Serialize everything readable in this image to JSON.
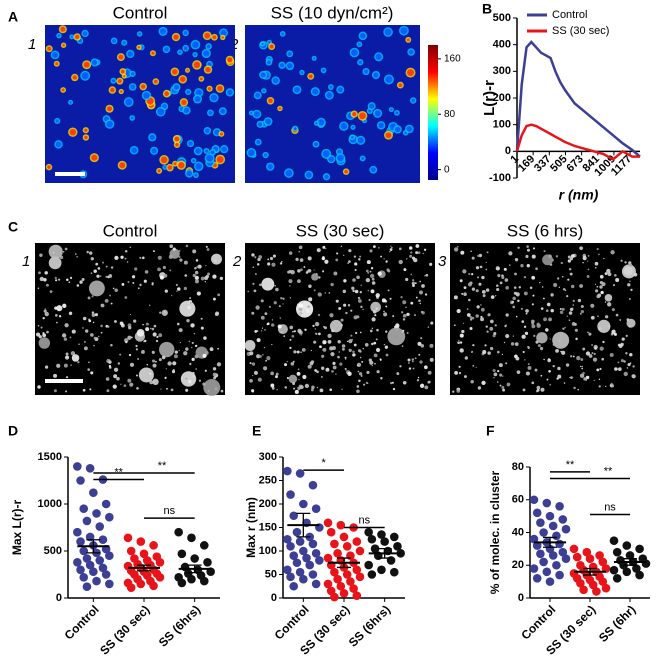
{
  "figure": {
    "panel_labels": [
      "A",
      "B",
      "C",
      "D",
      "E",
      "F"
    ],
    "titles_a": [
      "Control",
      "SS (10 dyn/cm²)"
    ],
    "numbers_a": [
      "1",
      "2"
    ],
    "titles_c": [
      "Control",
      "SS (30 sec)",
      "SS (6 hrs)"
    ],
    "numbers_c": [
      "1",
      "2",
      "3"
    ]
  },
  "chart_data": [
    {
      "type": "colorbar",
      "colors": [
        "#00008f",
        "#0000ff",
        "#00ffff",
        "#ffff00",
        "#ff0000",
        "#800000"
      ],
      "ylim": [
        -15,
        180
      ],
      "yticks": [
        0,
        80,
        160
      ]
    },
    {
      "type": "line",
      "xlabel": "r (nm)",
      "ylabel": "L(r)-r",
      "x": [
        1,
        50,
        100,
        150,
        200,
        250,
        300,
        350,
        400,
        450,
        500,
        600,
        700,
        800,
        900,
        1000,
        1100,
        1200,
        1280
      ],
      "series": [
        {
          "name": "Control",
          "color": "#3c3f94",
          "values": [
            0,
            250,
            390,
            410,
            390,
            370,
            360,
            350,
            300,
            260,
            230,
            180,
            150,
            120,
            90,
            60,
            30,
            5,
            -20
          ]
        },
        {
          "name": "SS (30 sec)",
          "color": "#e8141a",
          "values": [
            0,
            60,
            95,
            100,
            95,
            85,
            75,
            65,
            55,
            45,
            35,
            20,
            10,
            0,
            -10,
            -30,
            0,
            -20,
            -20
          ]
        }
      ],
      "xlim": [
        1,
        1280
      ],
      "xticks": [
        1,
        169,
        337,
        505,
        673,
        841,
        1009,
        1177
      ],
      "ylim": [
        -100,
        500
      ],
      "yticks": [
        -100,
        0,
        100,
        200,
        300,
        400,
        500
      ],
      "legend": "upper right"
    },
    {
      "type": "strip",
      "ylabel": "Max L(r)-r",
      "categories": [
        "Control",
        "SS (30 sec)",
        "SS (6hrs)"
      ],
      "series": [
        {
          "color": "#3c3f94",
          "mean": 550,
          "sem": 70,
          "values": [
            1400,
            1380,
            1260,
            1250,
            1120,
            1000,
            950,
            900,
            860,
            820,
            760,
            700,
            650,
            620,
            600,
            560,
            520,
            500,
            480,
            450,
            420,
            400,
            380,
            350,
            320,
            300,
            280,
            250,
            220,
            180,
            150,
            120
          ]
        },
        {
          "color": "#e8141a",
          "mean": 320,
          "sem": 30,
          "values": [
            640,
            600,
            560,
            500,
            470,
            440,
            420,
            400,
            380,
            360,
            350,
            340,
            320,
            300,
            290,
            280,
            260,
            250,
            240,
            220,
            200,
            180,
            160,
            150,
            130,
            110
          ]
        },
        {
          "color": "#111111",
          "mean": 310,
          "sem": 40,
          "values": [
            700,
            640,
            560,
            470,
            420,
            380,
            330,
            300,
            280,
            260,
            240,
            220,
            200,
            180,
            160
          ]
        }
      ],
      "ylim": [
        0,
        1500
      ],
      "yticks": [
        0,
        500,
        1000,
        1500
      ],
      "annotations": [
        "**",
        "**",
        "ns"
      ]
    },
    {
      "type": "strip",
      "ylabel": "Max r (nm)",
      "categories": [
        "Control",
        "SS (30 sec)",
        "SS (6hrs)"
      ],
      "series": [
        {
          "color": "#3c3f94",
          "mean": 155,
          "sem": 25,
          "values": [
            270,
            265,
            240,
            220,
            200,
            190,
            175,
            160,
            150,
            140,
            130,
            125,
            120,
            115,
            110,
            100,
            95,
            90,
            85,
            80,
            75,
            70,
            60,
            55,
            50,
            45,
            40,
            30,
            25
          ]
        },
        {
          "color": "#e8141a",
          "mean": 75,
          "sem": 10,
          "values": [
            160,
            155,
            150,
            140,
            130,
            120,
            115,
            110,
            100,
            95,
            90,
            85,
            80,
            75,
            70,
            65,
            60,
            55,
            50,
            45,
            40,
            35,
            30,
            25,
            20,
            15,
            10,
            5,
            2
          ]
        },
        {
          "color": "#111111",
          "mean": 95,
          "sem": 10,
          "values": [
            140,
            135,
            130,
            125,
            120,
            110,
            105,
            100,
            95,
            90,
            80,
            70,
            60,
            55,
            50
          ]
        }
      ],
      "ylim": [
        0,
        300
      ],
      "yticks": [
        0,
        50,
        100,
        150,
        200,
        250,
        300
      ],
      "annotations": [
        "*",
        "ns"
      ]
    },
    {
      "type": "strip",
      "ylabel": "% of molec. in cluster",
      "categories": [
        "Control",
        "SS (30 sec)",
        "SS (6hr)"
      ],
      "series": [
        {
          "color": "#3c3f94",
          "mean": 34,
          "sem": 3,
          "values": [
            60,
            58,
            56,
            52,
            50,
            48,
            46,
            44,
            42,
            40,
            38,
            36,
            34,
            33,
            32,
            30,
            28,
            27,
            26,
            24,
            22,
            20,
            18,
            16,
            14,
            12,
            10
          ]
        },
        {
          "color": "#e8141a",
          "mean": 16,
          "sem": 2,
          "values": [
            30,
            28,
            26,
            25,
            24,
            22,
            20,
            19,
            18,
            17,
            16,
            15,
            14,
            13,
            12,
            11,
            10,
            9,
            8,
            6,
            5,
            4
          ]
        },
        {
          "color": "#111111",
          "mean": 22,
          "sem": 2,
          "values": [
            35,
            32,
            30,
            28,
            26,
            24,
            23,
            22,
            21,
            20,
            18,
            17,
            16,
            14,
            12
          ]
        }
      ],
      "ylim": [
        0,
        80
      ],
      "yticks": [
        0,
        20,
        40,
        60,
        80
      ],
      "annotations": [
        "**",
        "**",
        "ns"
      ]
    }
  ]
}
